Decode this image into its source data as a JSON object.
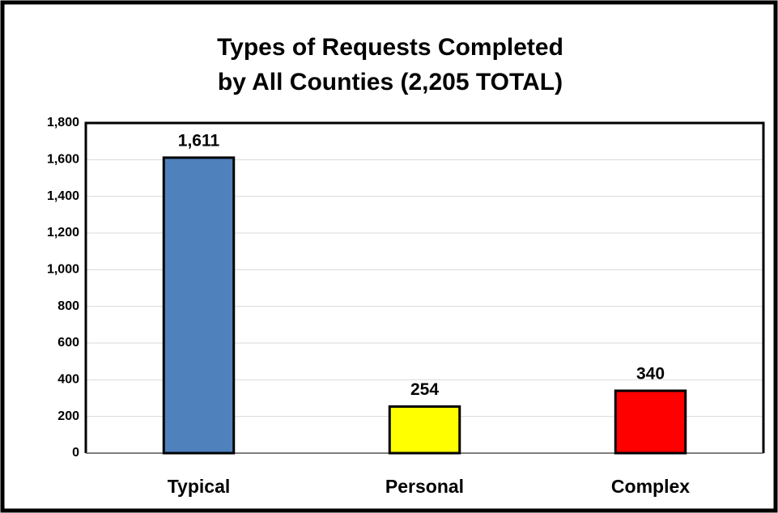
{
  "chart_data": {
    "type": "bar",
    "title": [
      "Types of Requests Completed",
      "by All Counties (2,205 TOTAL)"
    ],
    "categories": [
      "Typical",
      "Personal",
      "Complex"
    ],
    "values": [
      1611,
      254,
      340
    ],
    "value_labels": [
      "1,611",
      "254",
      "340"
    ],
    "colors": [
      "#4f81bd",
      "#ffff00",
      "#ff0000"
    ],
    "ylim": [
      0,
      1800
    ],
    "yticks": [
      0,
      200,
      400,
      600,
      800,
      {
        "value": 1000,
        "label": "1,000"
      },
      {
        "value": 1200,
        "label": "1,200"
      },
      {
        "value": 1400,
        "label": "1,400"
      },
      {
        "value": 1600,
        "label": "1,600"
      },
      {
        "value": 1800,
        "label": "1,800"
      }
    ],
    "grid": true
  }
}
